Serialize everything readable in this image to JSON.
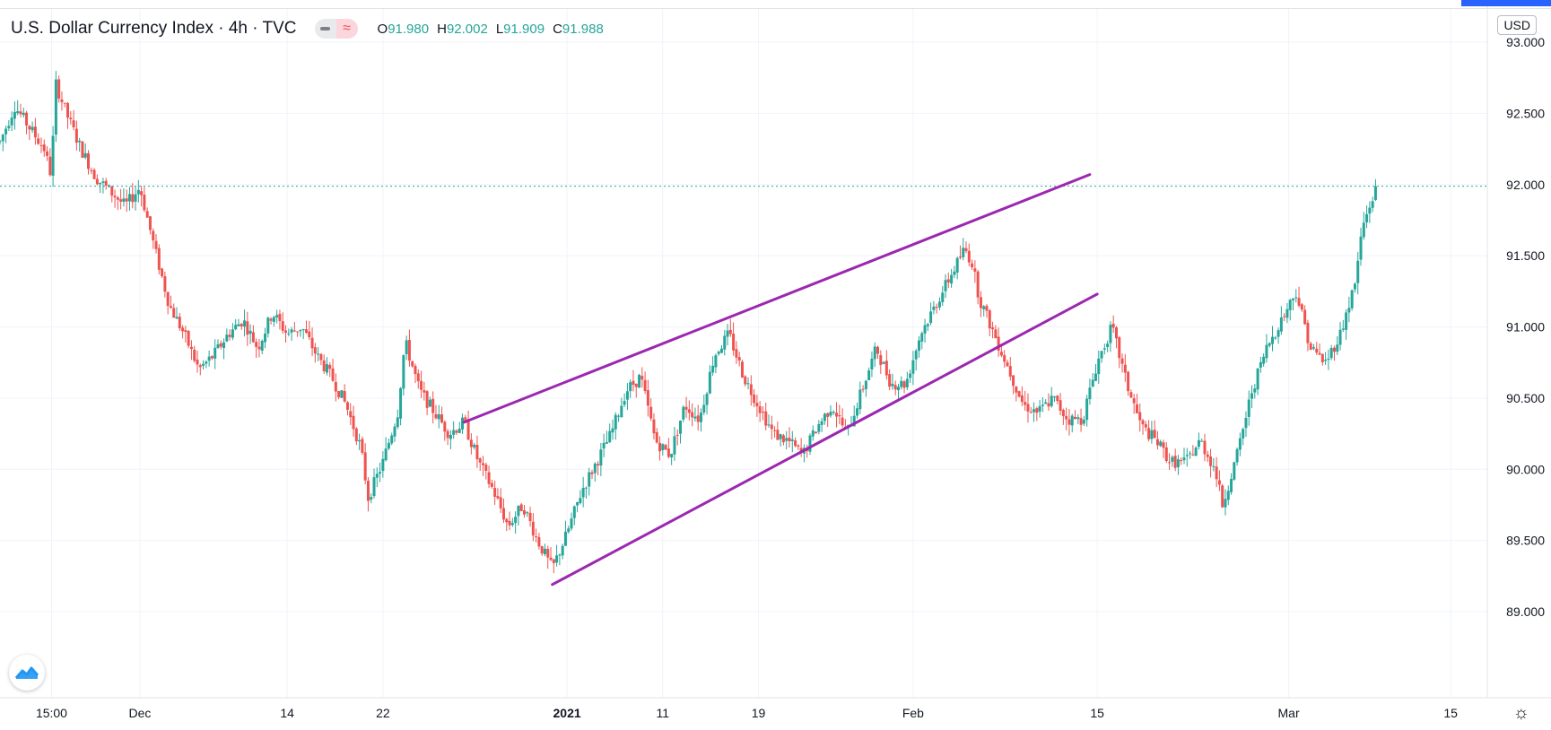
{
  "header": {
    "symbol": "U.S. Dollar Currency Index · 4h · TVC",
    "ohlc": [
      {
        "key": "O",
        "value": "91.980"
      },
      {
        "key": "H",
        "value": "92.002"
      },
      {
        "key": "L",
        "value": "91.909"
      },
      {
        "key": "C",
        "value": "91.988"
      }
    ]
  },
  "currency_label": "USD",
  "icons": [
    "chart-type-icon",
    "compare-icon",
    "tradingview-logo-icon",
    "settings-gear-icon"
  ],
  "colors": {
    "up": "#26a69a",
    "down": "#ef5350",
    "trendline": "#9c27b0",
    "grid": "#f0f3fa",
    "price_line": "#26a69a"
  },
  "chart_data": {
    "type": "candlestick",
    "y_range": [
      88.8,
      93.2
    ],
    "y_ticks": [
      "93.000",
      "92.500",
      "92.000",
      "91.500",
      "91.000",
      "90.500",
      "90.000",
      "89.500",
      "89.000"
    ],
    "x_ticks": [
      {
        "label": "15:00",
        "x": 0.0
      },
      {
        "label": "Dec",
        "x": 12.0
      },
      {
        "label": "14",
        "x": 32.0
      },
      {
        "label": "22",
        "x": 45.0
      },
      {
        "label": "2021",
        "x": 70.0
      },
      {
        "label": "11",
        "x": 83.0
      },
      {
        "label": "19",
        "x": 96.0
      },
      {
        "label": "Feb",
        "x": 117.0
      },
      {
        "label": "15",
        "x": 142.0
      },
      {
        "label": "Mar",
        "x": 168.0
      },
      {
        "label": "15",
        "x": 190.0
      }
    ],
    "x_range": [
      -7,
      194
    ],
    "current_price": 91.988,
    "trendlines": [
      {
        "x1": 56.0,
        "y1": 90.33,
        "x2": 141.0,
        "y2": 92.07
      },
      {
        "x1": 68.0,
        "y1": 89.19,
        "x2": 142.0,
        "y2": 91.23
      }
    ],
    "path_points": [
      [
        -7,
        92.3
      ],
      [
        -5,
        92.55
      ],
      [
        -3,
        92.4
      ],
      [
        -1,
        92.25
      ],
      [
        0,
        92.05
      ],
      [
        0.5,
        92.72
      ],
      [
        2,
        92.5
      ],
      [
        4,
        92.25
      ],
      [
        6,
        92.05
      ],
      [
        8,
        91.95
      ],
      [
        10,
        91.85
      ],
      [
        12,
        91.98
      ],
      [
        14,
        91.55
      ],
      [
        16,
        91.15
      ],
      [
        18,
        90.95
      ],
      [
        20,
        90.7
      ],
      [
        22,
        90.8
      ],
      [
        24,
        90.95
      ],
      [
        26,
        91.05
      ],
      [
        28,
        90.85
      ],
      [
        30,
        91.1
      ],
      [
        32,
        90.95
      ],
      [
        34,
        91.0
      ],
      [
        36,
        90.8
      ],
      [
        38,
        90.65
      ],
      [
        40,
        90.45
      ],
      [
        42,
        90.15
      ],
      [
        43,
        89.8
      ],
      [
        45,
        90.05
      ],
      [
        47,
        90.4
      ],
      [
        48,
        90.9
      ],
      [
        50,
        90.55
      ],
      [
        52,
        90.4
      ],
      [
        54,
        90.25
      ],
      [
        56,
        90.33
      ],
      [
        58,
        90.05
      ],
      [
        60,
        89.85
      ],
      [
        62,
        89.6
      ],
      [
        64,
        89.75
      ],
      [
        66,
        89.5
      ],
      [
        68,
        89.3
      ],
      [
        70,
        89.55
      ],
      [
        72,
        89.85
      ],
      [
        74,
        90.05
      ],
      [
        76,
        90.25
      ],
      [
        78,
        90.55
      ],
      [
        80,
        90.65
      ],
      [
        82,
        90.2
      ],
      [
        84,
        90.1
      ],
      [
        86,
        90.45
      ],
      [
        88,
        90.35
      ],
      [
        90,
        90.8
      ],
      [
        92,
        90.95
      ],
      [
        94,
        90.65
      ],
      [
        96,
        90.45
      ],
      [
        98,
        90.25
      ],
      [
        100,
        90.2
      ],
      [
        102,
        90.1
      ],
      [
        104,
        90.3
      ],
      [
        106,
        90.45
      ],
      [
        108,
        90.25
      ],
      [
        110,
        90.55
      ],
      [
        112,
        90.85
      ],
      [
        114,
        90.6
      ],
      [
        116,
        90.6
      ],
      [
        118,
        90.95
      ],
      [
        120,
        91.15
      ],
      [
        122,
        91.35
      ],
      [
        124,
        91.55
      ],
      [
        125,
        91.45
      ],
      [
        126,
        91.2
      ],
      [
        128,
        90.95
      ],
      [
        130,
        90.7
      ],
      [
        132,
        90.45
      ],
      [
        134,
        90.4
      ],
      [
        136,
        90.5
      ],
      [
        138,
        90.35
      ],
      [
        140,
        90.35
      ],
      [
        142,
        90.75
      ],
      [
        144,
        91.0
      ],
      [
        146,
        90.6
      ],
      [
        148,
        90.3
      ],
      [
        150,
        90.2
      ],
      [
        152,
        90.05
      ],
      [
        154,
        90.05
      ],
      [
        156,
        90.2
      ],
      [
        158,
        90.0
      ],
      [
        159,
        89.75
      ],
      [
        161,
        90.1
      ],
      [
        163,
        90.55
      ],
      [
        165,
        90.85
      ],
      [
        167,
        91.05
      ],
      [
        169,
        91.25
      ],
      [
        171,
        90.85
      ],
      [
        173,
        90.75
      ],
      [
        175,
        90.95
      ],
      [
        177,
        91.3
      ],
      [
        178,
        91.7
      ],
      [
        179,
        91.85
      ],
      [
        180,
        91.99
      ]
    ]
  }
}
